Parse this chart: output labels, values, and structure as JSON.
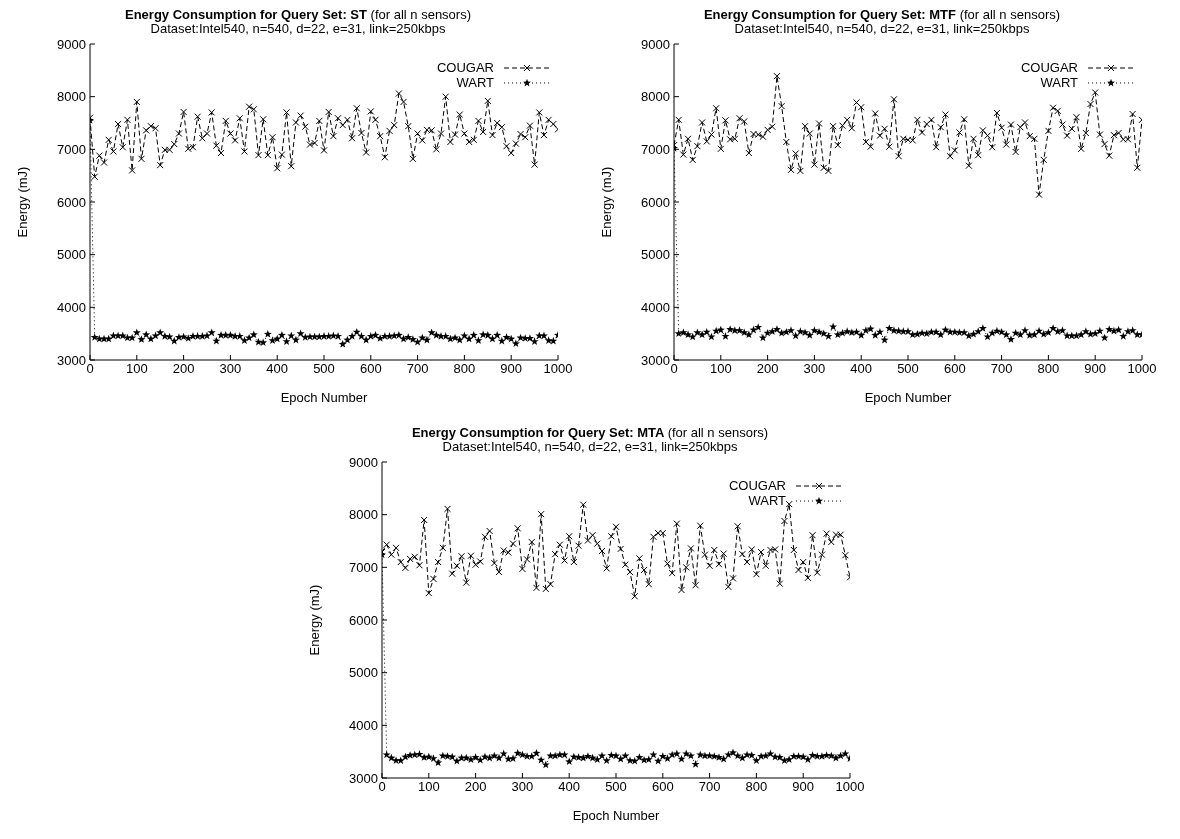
{
  "chart_data": [
    {
      "type": "line",
      "title": "Energy Consumption for Query Set: ST (for all n sensors)",
      "subtitle": "Dataset:Intel540, n=540, d=22, e=31, link=250kbps",
      "xlabel": "Epoch Number",
      "ylabel": "Energy (mJ)",
      "xlim": [
        0,
        1000
      ],
      "xticks": [
        0,
        100,
        200,
        300,
        400,
        500,
        600,
        700,
        800,
        900,
        1000
      ],
      "ylim": [
        3000,
        9000
      ],
      "yticks": [
        3000,
        4000,
        5000,
        6000,
        7000,
        8000,
        9000
      ],
      "legend": "top right",
      "x": [
        0,
        10,
        20,
        30,
        40,
        50,
        60,
        70,
        80,
        90,
        100,
        110,
        120,
        130,
        140,
        150,
        160,
        170,
        180,
        190,
        200,
        210,
        220,
        230,
        240,
        250,
        260,
        270,
        280,
        290,
        300,
        310,
        320,
        330,
        340,
        350,
        360,
        370,
        380,
        390,
        400,
        410,
        420,
        430,
        440,
        450,
        460,
        470,
        480,
        490,
        500,
        510,
        520,
        530,
        540,
        550,
        560,
        570,
        580,
        590,
        600,
        610,
        620,
        630,
        640,
        650,
        660,
        670,
        680,
        690,
        700,
        710,
        720,
        730,
        740,
        750,
        760,
        770,
        780,
        790,
        800,
        810,
        820,
        830,
        840,
        850,
        860,
        870,
        880,
        890,
        900,
        910,
        920,
        930,
        940,
        950,
        960,
        970,
        980,
        990,
        1000
      ],
      "series": [
        {
          "name": "COUGAR",
          "color": "#000000",
          "marker": "cross",
          "line_style": "dashed",
          "values": [
            7600,
            6480,
            6880,
            6750,
            7180,
            6960,
            7480,
            7040,
            7560,
            6600,
            7900,
            6820,
            7360,
            7440,
            7400,
            6700,
            6990,
            6990,
            7100,
            7300,
            7710,
            7010,
            7040,
            7620,
            7210,
            7300,
            7700,
            7070,
            6930,
            7540,
            7300,
            7170,
            7590,
            6960,
            7810,
            7760,
            6890,
            7570,
            6890,
            7230,
            6640,
            6900,
            7700,
            6680,
            7510,
            7640,
            7430,
            7090,
            7120,
            7540,
            6980,
            7710,
            7250,
            7590,
            7460,
            7560,
            7210,
            7780,
            7310,
            6940,
            7720,
            7560,
            7250,
            6850,
            7350,
            7460,
            8060,
            7900,
            7440,
            6820,
            7300,
            7170,
            7370,
            7360,
            7000,
            7300,
            8000,
            7140,
            7280,
            7660,
            7300,
            7140,
            7180,
            7540,
            7330,
            7920,
            7270,
            7500,
            7420,
            7060,
            6930,
            7110,
            7290,
            7230,
            7450,
            6710,
            7700,
            7270,
            7560,
            7480,
            7380
          ]
        },
        {
          "name": "WART",
          "color": "#000000",
          "marker": "star",
          "line_style": "dotted",
          "values": [
            7550,
            3430,
            3400,
            3400,
            3400,
            3460,
            3460,
            3460,
            3420,
            3420,
            3520,
            3390,
            3480,
            3400,
            3460,
            3520,
            3450,
            3440,
            3360,
            3430,
            3440,
            3410,
            3450,
            3450,
            3450,
            3460,
            3520,
            3360,
            3470,
            3470,
            3470,
            3450,
            3450,
            3370,
            3420,
            3480,
            3340,
            3330,
            3490,
            3370,
            3400,
            3470,
            3350,
            3460,
            3380,
            3500,
            3430,
            3440,
            3440,
            3440,
            3450,
            3450,
            3460,
            3450,
            3300,
            3380,
            3450,
            3530,
            3450,
            3380,
            3450,
            3470,
            3410,
            3450,
            3450,
            3460,
            3470,
            3400,
            3430,
            3390,
            3340,
            3420,
            3380,
            3520,
            3470,
            3450,
            3450,
            3400,
            3420,
            3380,
            3460,
            3400,
            3470,
            3370,
            3480,
            3470,
            3400,
            3470,
            3360,
            3430,
            3400,
            3310,
            3420,
            3410,
            3410,
            3350,
            3460,
            3460,
            3370,
            3360,
            3470
          ]
        }
      ]
    },
    {
      "type": "line",
      "title": "Energy Consumption for Query Set: MTF (for all n sensors)",
      "subtitle": "Dataset:Intel540, n=540, d=22, e=31, link=250kbps",
      "xlabel": "Epoch Number",
      "ylabel": "Energy (mJ)",
      "xlim": [
        0,
        1000
      ],
      "xticks": [
        0,
        100,
        200,
        300,
        400,
        500,
        600,
        700,
        800,
        900,
        1000
      ],
      "ylim": [
        3000,
        9000
      ],
      "yticks": [
        3000,
        4000,
        5000,
        6000,
        7000,
        8000,
        9000
      ],
      "legend": "top right",
      "x": [
        0,
        10,
        20,
        30,
        40,
        50,
        60,
        70,
        80,
        90,
        100,
        110,
        120,
        130,
        140,
        150,
        160,
        170,
        180,
        190,
        200,
        210,
        220,
        230,
        240,
        250,
        260,
        270,
        280,
        290,
        300,
        310,
        320,
        330,
        340,
        350,
        360,
        370,
        380,
        390,
        400,
        410,
        420,
        430,
        440,
        450,
        460,
        470,
        480,
        490,
        500,
        510,
        520,
        530,
        540,
        550,
        560,
        570,
        580,
        590,
        600,
        610,
        620,
        630,
        640,
        650,
        660,
        670,
        680,
        690,
        700,
        710,
        720,
        730,
        740,
        750,
        760,
        770,
        780,
        790,
        800,
        810,
        820,
        830,
        840,
        850,
        860,
        870,
        880,
        890,
        900,
        910,
        920,
        930,
        940,
        950,
        960,
        970,
        980,
        990,
        1000
      ],
      "series": [
        {
          "name": "COUGAR",
          "color": "#000000",
          "marker": "cross",
          "line_style": "dashed",
          "values": [
            7080,
            7560,
            6900,
            7200,
            6800,
            7060,
            7510,
            7150,
            7280,
            7780,
            7010,
            7550,
            7190,
            7200,
            7590,
            7530,
            6930,
            7290,
            7280,
            7240,
            7370,
            7430,
            8390,
            7820,
            7140,
            6610,
            6920,
            6590,
            7440,
            7300,
            6710,
            7490,
            6650,
            6590,
            7440,
            7080,
            7450,
            7560,
            7400,
            7890,
            7800,
            7140,
            7050,
            7680,
            7260,
            7390,
            7050,
            7950,
            6870,
            7200,
            7180,
            7170,
            7560,
            7320,
            7480,
            7560,
            7040,
            7420,
            7660,
            6870,
            6980,
            7320,
            7570,
            6690,
            7200,
            6890,
            7360,
            7260,
            7040,
            7690,
            7410,
            7090,
            7470,
            6950,
            7420,
            7510,
            7250,
            7200,
            6140,
            6800,
            7350,
            7790,
            7730,
            7470,
            7260,
            7390,
            7610,
            7010,
            7310,
            7860,
            8080,
            7280,
            7100,
            6880,
            7270,
            7310,
            7190,
            7190,
            7670,
            6650,
            7560
          ]
        },
        {
          "name": "WART",
          "color": "#000000",
          "marker": "star",
          "line_style": "dotted",
          "values": [
            7020,
            3500,
            3520,
            3480,
            3440,
            3520,
            3480,
            3530,
            3440,
            3550,
            3570,
            3450,
            3580,
            3560,
            3560,
            3520,
            3480,
            3570,
            3620,
            3420,
            3510,
            3540,
            3580,
            3510,
            3530,
            3560,
            3460,
            3540,
            3520,
            3470,
            3560,
            3530,
            3500,
            3450,
            3630,
            3480,
            3510,
            3540,
            3520,
            3530,
            3470,
            3560,
            3590,
            3470,
            3530,
            3380,
            3600,
            3560,
            3550,
            3540,
            3540,
            3480,
            3490,
            3510,
            3500,
            3530,
            3530,
            3480,
            3570,
            3530,
            3530,
            3520,
            3520,
            3460,
            3490,
            3540,
            3600,
            3440,
            3510,
            3550,
            3530,
            3480,
            3390,
            3510,
            3480,
            3560,
            3470,
            3480,
            3550,
            3490,
            3520,
            3600,
            3540,
            3560,
            3460,
            3460,
            3460,
            3480,
            3540,
            3490,
            3500,
            3550,
            3420,
            3580,
            3550,
            3570,
            3450,
            3540,
            3560,
            3480,
            3480
          ]
        }
      ]
    },
    {
      "type": "line",
      "title": "Energy Consumption for Query Set: MTA (for all n sensors)",
      "subtitle": "Dataset:Intel540, n=540, d=22, e=31, link=250kbps",
      "xlabel": "Epoch Number",
      "ylabel": "Energy (mJ)",
      "xlim": [
        0,
        1000
      ],
      "xticks": [
        0,
        100,
        200,
        300,
        400,
        500,
        600,
        700,
        800,
        900,
        1000
      ],
      "ylim": [
        3000,
        9000
      ],
      "yticks": [
        3000,
        4000,
        5000,
        6000,
        7000,
        8000,
        9000
      ],
      "legend": "top right",
      "x": [
        0,
        10,
        20,
        30,
        40,
        50,
        60,
        70,
        80,
        90,
        100,
        110,
        120,
        130,
        140,
        150,
        160,
        170,
        180,
        190,
        200,
        210,
        220,
        230,
        240,
        250,
        260,
        270,
        280,
        290,
        300,
        310,
        320,
        330,
        340,
        350,
        360,
        370,
        380,
        390,
        400,
        410,
        420,
        430,
        440,
        450,
        460,
        470,
        480,
        490,
        500,
        510,
        520,
        530,
        540,
        550,
        560,
        570,
        580,
        590,
        600,
        610,
        620,
        630,
        640,
        650,
        660,
        670,
        680,
        690,
        700,
        710,
        720,
        730,
        740,
        750,
        760,
        770,
        780,
        790,
        800,
        810,
        820,
        830,
        840,
        850,
        860,
        870,
        880,
        890,
        900,
        910,
        920,
        930,
        940,
        950,
        960,
        970,
        980,
        990,
        1000
      ],
      "series": [
        {
          "name": "COUGAR",
          "color": "#000000",
          "marker": "cross",
          "line_style": "dashed",
          "values": [
            7290,
            7430,
            7240,
            7370,
            7100,
            6990,
            7160,
            7200,
            7040,
            7900,
            6510,
            6780,
            7100,
            7370,
            8110,
            6880,
            7030,
            7210,
            6710,
            7220,
            7050,
            7110,
            7580,
            7690,
            7080,
            6910,
            7320,
            7280,
            7450,
            7740,
            6970,
            7150,
            7480,
            6610,
            8010,
            6590,
            6680,
            7250,
            7430,
            7130,
            7590,
            7100,
            7410,
            8190,
            7510,
            7610,
            7450,
            7310,
            6980,
            7590,
            7770,
            7350,
            7050,
            6910,
            6450,
            7170,
            6950,
            6680,
            7580,
            7650,
            7650,
            7070,
            6890,
            7830,
            6570,
            7000,
            7360,
            6660,
            7790,
            7240,
            7030,
            7330,
            7060,
            7260,
            6630,
            6790,
            7780,
            7250,
            7100,
            7340,
            6870,
            7290,
            7030,
            7330,
            7340,
            6690,
            7880,
            8200,
            7330,
            6950,
            7100,
            6800,
            7610,
            6900,
            7240,
            7640,
            7480,
            7620,
            7620,
            7230,
            6810
          ]
        },
        {
          "name": "WART",
          "color": "#000000",
          "marker": "star",
          "line_style": "dotted",
          "values": [
            7240,
            3440,
            3380,
            3330,
            3330,
            3400,
            3430,
            3440,
            3450,
            3390,
            3400,
            3370,
            3290,
            3420,
            3410,
            3400,
            3320,
            3380,
            3380,
            3350,
            3390,
            3340,
            3400,
            3380,
            3420,
            3380,
            3460,
            3360,
            3370,
            3470,
            3440,
            3410,
            3410,
            3470,
            3340,
            3250,
            3420,
            3420,
            3440,
            3440,
            3310,
            3400,
            3390,
            3380,
            3410,
            3380,
            3350,
            3420,
            3330,
            3430,
            3420,
            3360,
            3420,
            3330,
            3320,
            3390,
            3340,
            3350,
            3440,
            3320,
            3410,
            3370,
            3440,
            3460,
            3360,
            3460,
            3420,
            3260,
            3440,
            3420,
            3420,
            3410,
            3390,
            3360,
            3440,
            3480,
            3420,
            3380,
            3440,
            3430,
            3330,
            3410,
            3420,
            3460,
            3400,
            3390,
            3330,
            3350,
            3410,
            3410,
            3400,
            3350,
            3430,
            3410,
            3410,
            3430,
            3420,
            3380,
            3420,
            3460,
            3370
          ]
        }
      ]
    }
  ]
}
